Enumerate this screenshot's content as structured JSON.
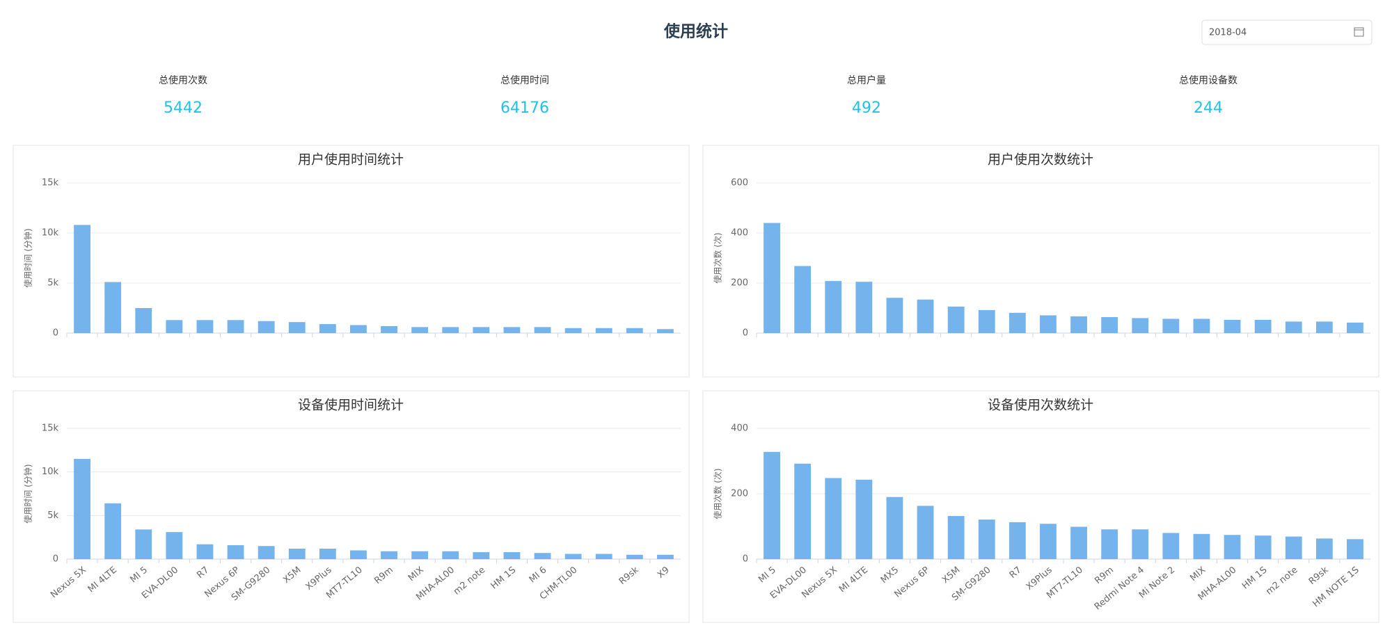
{
  "header": {
    "title": "使用统计",
    "date": "2018-04"
  },
  "stats": [
    {
      "label": "总使用次数",
      "value": "5442"
    },
    {
      "label": "总使用时间",
      "value": "64176"
    },
    {
      "label": "总用户量",
      "value": "492"
    },
    {
      "label": "总使用设备数",
      "value": "244"
    }
  ],
  "chart_data": [
    {
      "type": "bar",
      "title": "用户使用时间统计",
      "ylabel": "使用时间 (分钟)",
      "color": "#74b3ec",
      "grid": true,
      "categories": [
        null,
        null,
        null,
        null,
        null,
        null,
        null,
        null,
        null,
        null,
        null,
        null,
        null,
        null,
        null,
        null,
        null,
        null,
        null,
        null
      ],
      "values": [
        10800,
        5100,
        2500,
        1300,
        1300,
        1300,
        1200,
        1100,
        900,
        800,
        700,
        600,
        600,
        600,
        600,
        600,
        500,
        500,
        500,
        400
      ],
      "ylim": [
        0,
        15000
      ],
      "yticks": [
        0,
        {
          "value": 5000,
          "label": "5k"
        },
        {
          "value": 10000,
          "label": "10k"
        },
        {
          "value": 15000,
          "label": "15k"
        }
      ]
    },
    {
      "type": "bar",
      "title": "用户使用次数统计",
      "ylabel": "使用次数 (次)",
      "color": "#74b3ec",
      "grid": true,
      "categories": [
        null,
        null,
        null,
        null,
        null,
        null,
        null,
        null,
        null,
        null,
        null,
        null,
        null,
        null,
        null,
        null,
        null,
        null,
        null,
        null
      ],
      "values": [
        440,
        268,
        208,
        205,
        141,
        134,
        106,
        92,
        81,
        71,
        67,
        64,
        60,
        57,
        57,
        53,
        53,
        46,
        46,
        42
      ],
      "ylim": [
        0,
        600
      ],
      "yticks": [
        0,
        200,
        400,
        600
      ]
    },
    {
      "type": "bar",
      "title": "设备使用时间统计",
      "ylabel": "使用时间 (分钟)",
      "color": "#74b3ec",
      "grid": true,
      "categories": [
        "Nexus 5X",
        "MI 4LTE",
        "MI 5",
        "EVA-DL00",
        "R7",
        "Nexus 6P",
        "SM-G9280",
        "X5M",
        "X9Plus",
        "MT7-TL10",
        "R9m",
        "MIX",
        "MHA-AL00",
        "m2 note",
        "HM 1S",
        "MI 6",
        "CHM-TL00",
        null,
        "R9sk",
        "X9"
      ],
      "values": [
        11500,
        6400,
        3400,
        3100,
        1700,
        1600,
        1500,
        1200,
        1200,
        1000,
        900,
        900,
        900,
        800,
        800,
        700,
        600,
        600,
        500,
        500
      ],
      "ylim": [
        0,
        15000
      ],
      "yticks": [
        0,
        {
          "value": 5000,
          "label": "5k"
        },
        {
          "value": 10000,
          "label": "10k"
        },
        {
          "value": 15000,
          "label": "15k"
        }
      ]
    },
    {
      "type": "bar",
      "title": "设备使用次数统计",
      "ylabel": "使用次数 (次)",
      "color": "#74b3ec",
      "grid": true,
      "categories": [
        "MI 5",
        "EVA-DL00",
        "Nexus 5X",
        "MI 4LTE",
        "MX5",
        "Nexus 6P",
        "X5M",
        "SM-G9280",
        "R7",
        "X9Plus",
        "MT7-TL10",
        "R9m",
        "Redmi Note 4",
        "Mi Note 2",
        "MIX",
        "MHA-AL00",
        "HM 1S",
        "m2 note",
        "R9sk",
        "HM NOTE 1S"
      ],
      "values": [
        328,
        292,
        248,
        243,
        190,
        163,
        132,
        121,
        113,
        108,
        99,
        91,
        91,
        80,
        77,
        74,
        72,
        69,
        63,
        61
      ],
      "ylim": [
        0,
        400
      ],
      "yticks": [
        0,
        200,
        400
      ]
    }
  ]
}
